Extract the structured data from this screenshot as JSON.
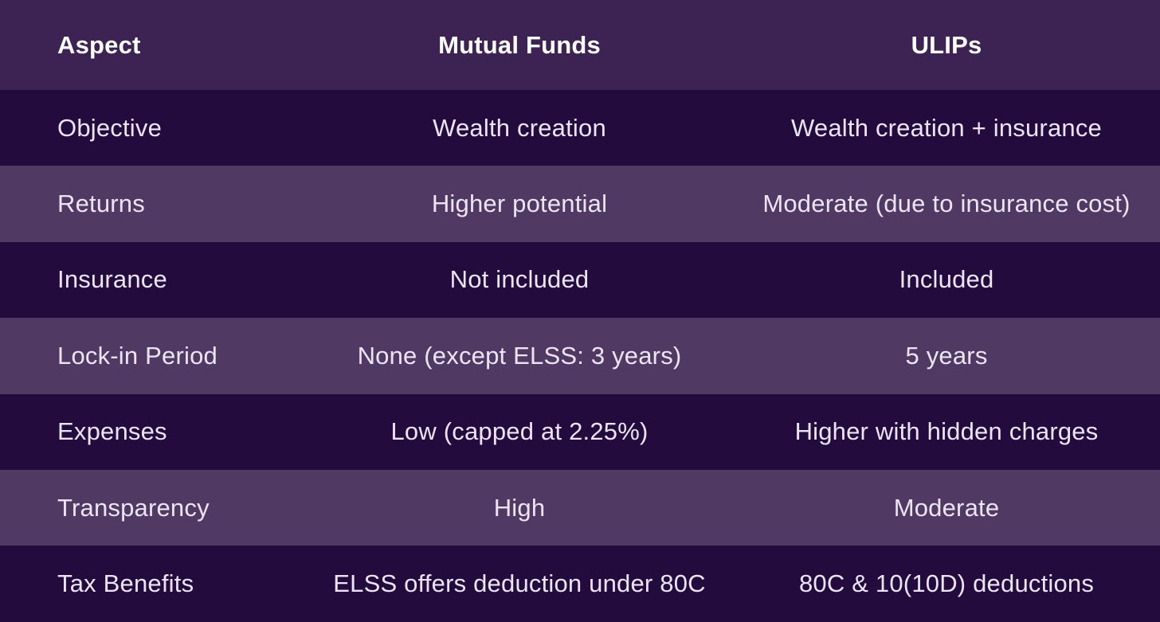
{
  "table": {
    "headers": [
      "Aspect",
      "Mutual Funds",
      "ULIPs"
    ],
    "rows": [
      [
        "Objective",
        "Wealth creation",
        "Wealth creation + insurance"
      ],
      [
        "Returns",
        "Higher potential",
        "Moderate (due to insurance cost)"
      ],
      [
        "Insurance",
        "Not included",
        "Included"
      ],
      [
        "Lock-in Period",
        "None (except ELSS: 3 years)",
        "5 years"
      ],
      [
        "Expenses",
        "Low (capped at 2.25%)",
        "Higher with hidden charges"
      ],
      [
        "Transparency",
        "High",
        "Moderate"
      ],
      [
        "Tax Benefits",
        "ELSS offers deduction under 80C",
        "80C & 10(10D) deductions"
      ]
    ]
  },
  "colors": {
    "header_bg": "#3d2354",
    "row_dark_bg": "#230b3d",
    "row_light_bg": "#503a63",
    "text": "#ece4f4"
  }
}
